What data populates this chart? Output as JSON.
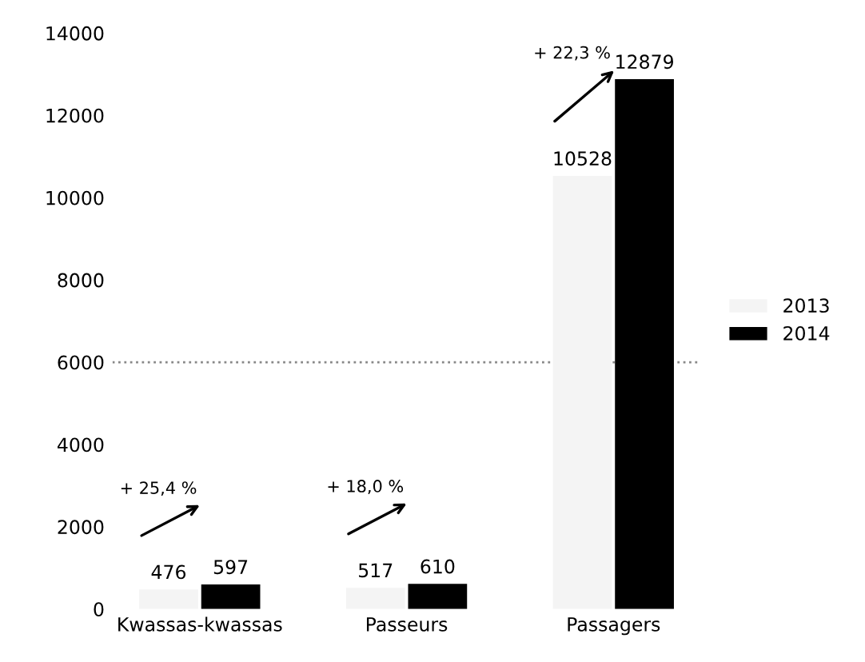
{
  "chart_data": {
    "type": "bar",
    "categories": [
      "Kwassas-kwassas",
      "Passeurs",
      "Passagers"
    ],
    "series": [
      {
        "name": "2013",
        "color": "#f4f4f4",
        "values": [
          476,
          517,
          10528
        ]
      },
      {
        "name": "2014",
        "color": "#000000",
        "values": [
          597,
          610,
          12879
        ]
      }
    ],
    "ylim": [
      0,
      14000
    ],
    "yticks": [
      0,
      2000,
      4000,
      6000,
      8000,
      10000,
      12000,
      14000
    ],
    "data_labels": true,
    "grid": false,
    "legend": "right",
    "ref_lines": [
      {
        "axis": "y",
        "value": 6000,
        "color": "#888888",
        "line_style": "dotted"
      }
    ],
    "annotations": [
      "+ 25,4 %",
      "+ 18,0 %",
      "+ 22,3 %"
    ]
  }
}
